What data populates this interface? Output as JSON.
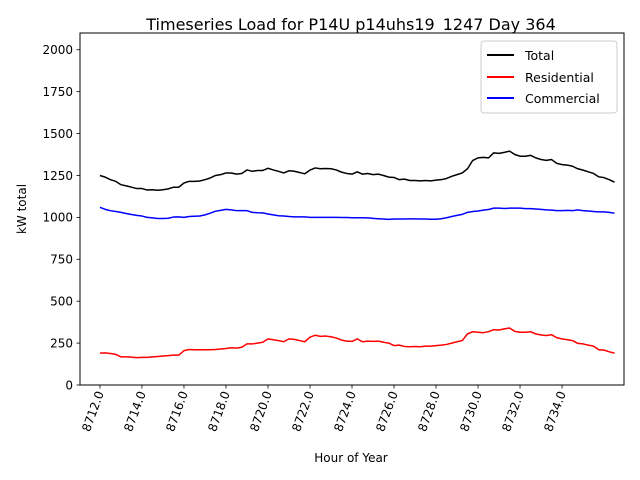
{
  "chart_data": {
    "type": "line",
    "title": "Timeseries Load for P14U p14uhs19_1247  Day 364",
    "xlabel": "Hour of Year",
    "ylabel": "kW total",
    "xlim": [
      8711.05,
      8736.95
    ],
    "ylim": [
      0,
      2100
    ],
    "xticks": [
      "8712.0",
      "8714.0",
      "8716.0",
      "8718.0",
      "8720.0",
      "8722.0",
      "8724.0",
      "8726.0",
      "8728.0",
      "8730.0",
      "8732.0",
      "8734.0"
    ],
    "yticks": [
      "0",
      "250",
      "500",
      "750",
      "1000",
      "1250",
      "1500",
      "1750",
      "2000"
    ],
    "legend_position": "top-right",
    "x_start": 8712.0,
    "x_step": 0.25,
    "series": [
      {
        "name": "Total",
        "color": "#000000",
        "values": [
          1250,
          1240,
          1225,
          1215,
          1195,
          1188,
          1180,
          1172,
          1172,
          1163,
          1165,
          1162,
          1165,
          1170,
          1180,
          1180,
          1205,
          1215,
          1215,
          1217,
          1225,
          1235,
          1250,
          1255,
          1265,
          1265,
          1258,
          1262,
          1283,
          1275,
          1280,
          1280,
          1293,
          1283,
          1275,
          1265,
          1278,
          1275,
          1268,
          1260,
          1282,
          1295,
          1290,
          1292,
          1290,
          1283,
          1270,
          1262,
          1258,
          1272,
          1258,
          1262,
          1255,
          1258,
          1250,
          1240,
          1238,
          1225,
          1228,
          1220,
          1220,
          1218,
          1220,
          1218,
          1222,
          1225,
          1232,
          1245,
          1255,
          1265,
          1290,
          1340,
          1355,
          1358,
          1355,
          1385,
          1382,
          1388,
          1395,
          1375,
          1365,
          1365,
          1370,
          1355,
          1345,
          1340,
          1345,
          1322,
          1315,
          1312,
          1305,
          1290,
          1282,
          1272,
          1262,
          1242,
          1237,
          1225,
          1210
        ]
      },
      {
        "name": "Residential",
        "color": "#ff0000",
        "values": [
          190,
          192,
          188,
          183,
          168,
          168,
          166,
          163,
          165,
          165,
          168,
          170,
          173,
          175,
          178,
          178,
          205,
          212,
          210,
          210,
          210,
          210,
          212,
          215,
          218,
          222,
          220,
          225,
          245,
          245,
          250,
          255,
          275,
          270,
          265,
          258,
          275,
          272,
          265,
          258,
          285,
          297,
          290,
          292,
          288,
          280,
          268,
          262,
          260,
          275,
          258,
          262,
          260,
          262,
          255,
          250,
          235,
          238,
          230,
          228,
          230,
          228,
          232,
          232,
          235,
          238,
          242,
          250,
          258,
          265,
          305,
          318,
          315,
          312,
          318,
          330,
          328,
          335,
          340,
          320,
          315,
          315,
          318,
          305,
          298,
          295,
          300,
          282,
          275,
          270,
          265,
          248,
          245,
          238,
          232,
          210,
          208,
          198,
          190
        ]
      },
      {
        "name": "Commercial",
        "color": "#0000ff",
        "values": [
          1060,
          1048,
          1040,
          1035,
          1030,
          1023,
          1017,
          1012,
          1008,
          1000,
          997,
          993,
          993,
          995,
          1002,
          1003,
          1000,
          1005,
          1007,
          1008,
          1015,
          1025,
          1037,
          1042,
          1048,
          1045,
          1040,
          1040,
          1040,
          1030,
          1028,
          1027,
          1020,
          1015,
          1010,
          1008,
          1005,
          1003,
          1003,
          1003,
          1000,
          1000,
          1000,
          1000,
          1000,
          1000,
          999,
          999,
          998,
          998,
          998,
          997,
          994,
          992,
          990,
          988,
          990,
          990,
          990,
          991,
          991,
          990,
          990,
          989,
          989,
          992,
          998,
          1005,
          1012,
          1018,
          1030,
          1035,
          1038,
          1043,
          1047,
          1055,
          1055,
          1053,
          1055,
          1055,
          1055,
          1052,
          1052,
          1050,
          1048,
          1045,
          1043,
          1040,
          1040,
          1042,
          1040,
          1045,
          1040,
          1038,
          1035,
          1033,
          1033,
          1030,
          1025
        ]
      }
    ]
  }
}
